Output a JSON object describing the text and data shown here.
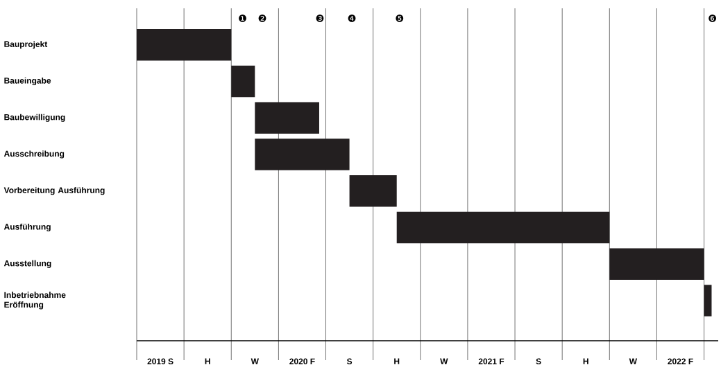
{
  "chart_data": {
    "type": "bar",
    "orientation": "horizontal",
    "categories": [
      "Bauprojekt",
      "Baueingabe",
      "Baubewilligung",
      "Ausschreibung",
      "Vorbereitung Ausführung",
      "Ausführung",
      "Ausstellung",
      "Inbetriebnahme Eröffnung"
    ],
    "base": [
      2019.34,
      2019.84,
      2019.965,
      2019.965,
      2020.465,
      2020.715,
      2021.84,
      2022.34
    ],
    "values": [
      0.5,
      0.125,
      0.34,
      0.5,
      0.25,
      1.125,
      0.5,
      0.04
    ],
    "color": "#231f20",
    "xlim": [
      2019.34,
      2022.415
    ],
    "xticks": [
      {
        "value": 2019.34,
        "label": null
      },
      {
        "value": 2019.59,
        "label": null
      },
      {
        "value": 2019.84,
        "label": null
      },
      {
        "value": 2020.09,
        "label": null
      },
      {
        "value": 2020.34,
        "label": null
      },
      {
        "value": 2020.59,
        "label": null
      },
      {
        "value": 2020.84,
        "label": null
      },
      {
        "value": 2021.09,
        "label": null
      },
      {
        "value": 2021.34,
        "label": null
      },
      {
        "value": 2021.59,
        "label": null
      },
      {
        "value": 2021.84,
        "label": null
      },
      {
        "value": 2022.09,
        "label": null
      },
      {
        "value": 2022.34,
        "label": null
      },
      {
        "value": 2019.465,
        "label": "2019 S"
      },
      {
        "value": 2019.715,
        "label": "H"
      },
      {
        "value": 2019.965,
        "label": "W"
      },
      {
        "value": 2020.215,
        "label": "2020 F"
      },
      {
        "value": 2020.465,
        "label": "S"
      },
      {
        "value": 2020.715,
        "label": "H"
      },
      {
        "value": 2020.965,
        "label": "W"
      },
      {
        "value": 2021.215,
        "label": "2021 F"
      },
      {
        "value": 2021.465,
        "label": "S"
      },
      {
        "value": 2021.715,
        "label": "H"
      },
      {
        "value": 2021.965,
        "label": "W"
      },
      {
        "value": 2022.215,
        "label": "2022 F"
      }
    ],
    "grid": "x",
    "annotations": [
      "❶",
      "❷",
      "❸",
      "❹",
      "❺",
      "❻"
    ]
  }
}
